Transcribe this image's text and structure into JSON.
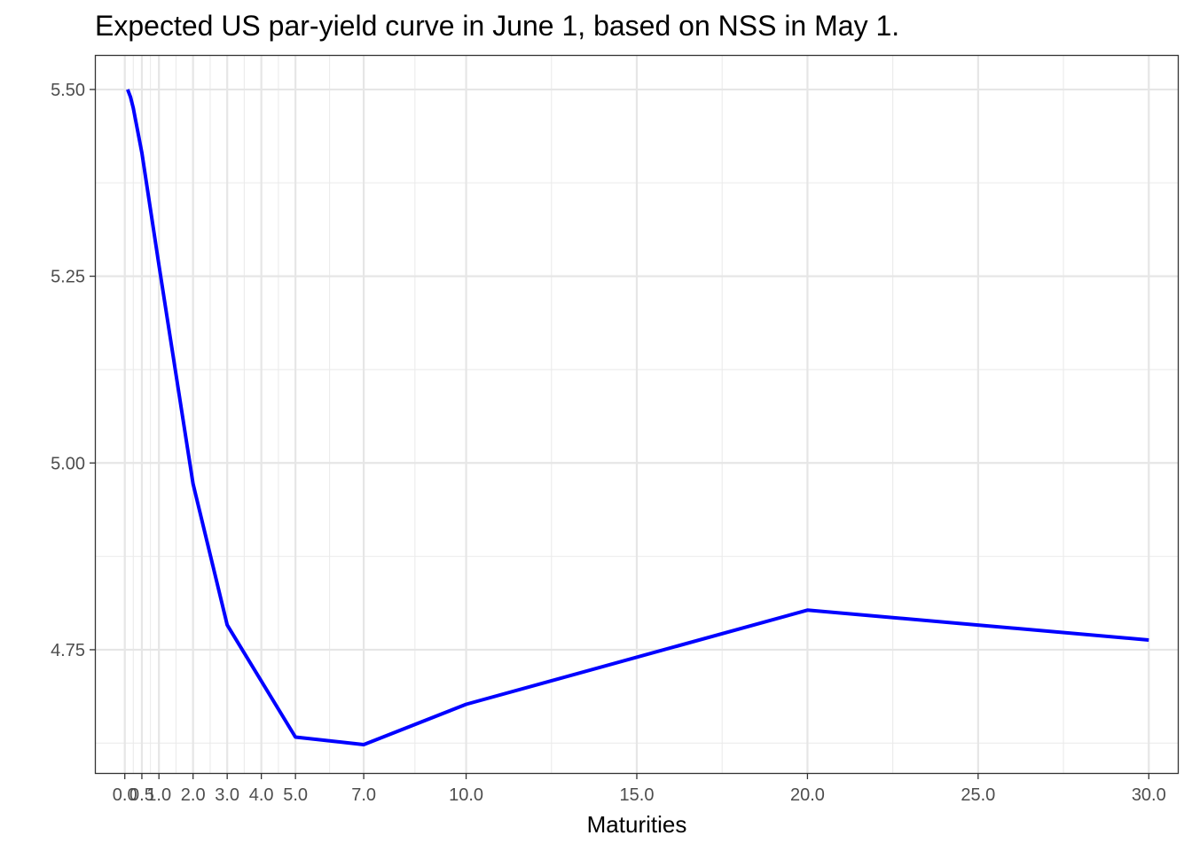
{
  "chart_data": {
    "type": "line",
    "title": "Expected US par-yield curve in June 1, based on NSS in May 1.",
    "xlabel": "Maturities",
    "ylabel": "",
    "xlim": [
      -0.85,
      30.85
    ],
    "ylim": [
      4.585,
      5.545
    ],
    "x_ticks": [
      0.0,
      0.5,
      1.0,
      2.0,
      3.0,
      4.0,
      5.0,
      7.0,
      10.0,
      15.0,
      20.0,
      25.0,
      30.0
    ],
    "x_tick_labels": [
      "0.0",
      "0.5",
      "1.0",
      "2.0",
      "3.0",
      "4.0",
      "5.0",
      "7.0",
      "10.0",
      "15.0",
      "20.0",
      "25.0",
      "30.0"
    ],
    "x_minor_grid": [
      0.25,
      0.75,
      1.5,
      2.5,
      3.5,
      4.5,
      6.0,
      8.5,
      12.5,
      17.5,
      22.5,
      27.5
    ],
    "y_ticks": [
      4.75,
      5.0,
      5.25,
      5.5
    ],
    "y_tick_labels": [
      "4.75",
      "5.00",
      "5.25",
      "5.50"
    ],
    "y_minor_grid": [
      4.625,
      4.875,
      5.125,
      5.375
    ],
    "grid": true,
    "series": [
      {
        "color": "#0000ff",
        "x": [
          0.083,
          0.167,
          0.25,
          0.333,
          0.5,
          0.75,
          1.0,
          2.0,
          3.0,
          5.0,
          7.0,
          10.0,
          20.0,
          30.0
        ],
        "y": [
          5.5,
          5.49,
          5.475,
          5.455,
          5.415,
          5.34,
          5.265,
          4.972,
          4.783,
          4.633,
          4.623,
          4.677,
          4.803,
          4.763
        ]
      }
    ]
  }
}
